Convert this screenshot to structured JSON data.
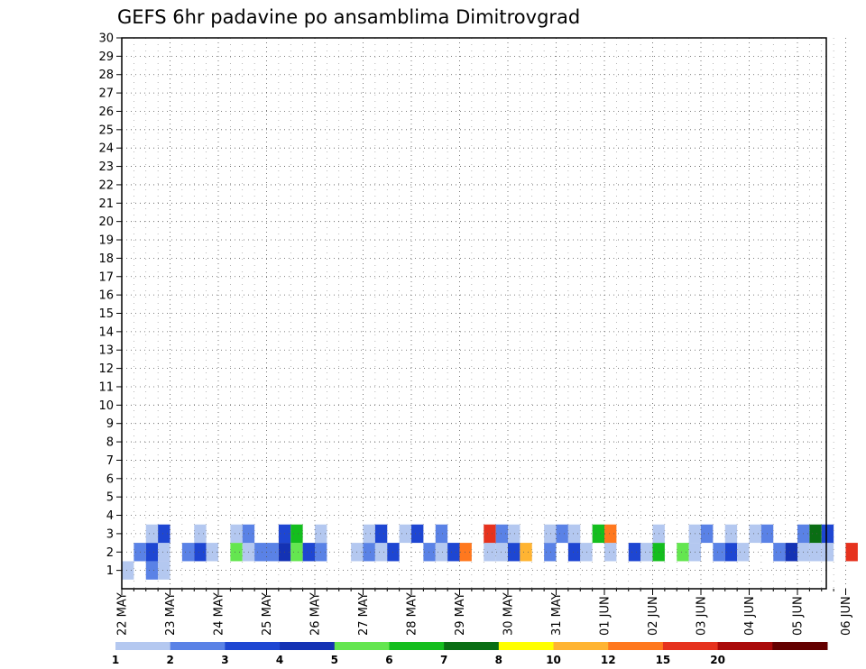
{
  "chart_data": {
    "type": "heatmap",
    "title": "GEFS 6hr padavine po ansamblima Dimitrovgrad",
    "xlabel": "",
    "ylabel": "",
    "x_ticks": [
      "22 MAY",
      "23 MAY",
      "24 MAY",
      "25 MAY",
      "26 MAY",
      "27 MAY",
      "28 MAY",
      "29 MAY",
      "30 MAY",
      "31 MAY",
      "01 JUN",
      "02 JUN",
      "03 JUN",
      "04 JUN",
      "05 JUN",
      "06 JUN"
    ],
    "y_range": [
      0,
      30
    ],
    "y_ticks": [
      1,
      2,
      3,
      4,
      5,
      6,
      7,
      8,
      9,
      10,
      11,
      12,
      13,
      14,
      15,
      16,
      17,
      18,
      19,
      20,
      21,
      22,
      23,
      24,
      25,
      26,
      27,
      28,
      29,
      30
    ],
    "grid": true,
    "legend": {
      "placement": "bottom",
      "labels": [
        "1",
        "2",
        "3",
        "4",
        "5",
        "6",
        "7",
        "8",
        "10",
        "12",
        "15",
        "20"
      ],
      "colors": [
        "#b4c8f0",
        "#5a82e6",
        "#1e46d2",
        "#1432b4",
        "#64e650",
        "#14be1e",
        "#0a6e14",
        "#ffff00",
        "#ffb432",
        "#ff781e",
        "#e6321e",
        "#aa0a0a",
        "#640000"
      ]
    },
    "cells": [
      [
        0.5,
        1,
        "#b4c8f0"
      ],
      [
        2.5,
        1,
        "#5a82e6"
      ],
      [
        3.5,
        1,
        "#b4c8f0"
      ],
      [
        1.5,
        2,
        "#5a82e6"
      ],
      [
        2.5,
        2,
        "#1e46d2"
      ],
      [
        3.5,
        2,
        "#b4c8f0"
      ],
      [
        5.5,
        2,
        "#5a82e6"
      ],
      [
        6.5,
        2,
        "#1e46d2"
      ],
      [
        7.5,
        2,
        "#b4c8f0"
      ],
      [
        9.5,
        2,
        "#64e650"
      ],
      [
        10.5,
        2,
        "#b4c8f0"
      ],
      [
        11.5,
        2,
        "#5a82e6"
      ],
      [
        12.5,
        2,
        "#5a82e6"
      ],
      [
        13.5,
        2,
        "#1432b4"
      ],
      [
        14.5,
        2,
        "#64e650"
      ],
      [
        15.5,
        2,
        "#1e46d2"
      ],
      [
        16.5,
        2,
        "#5a82e6"
      ],
      [
        19.5,
        2,
        "#b4c8f0"
      ],
      [
        20.5,
        2,
        "#5a82e6"
      ],
      [
        21.5,
        2,
        "#b4c8f0"
      ],
      [
        22.5,
        2,
        "#1e46d2"
      ],
      [
        25.5,
        2,
        "#5a82e6"
      ],
      [
        26.5,
        2,
        "#b4c8f0"
      ],
      [
        27.5,
        2,
        "#1e46d2"
      ],
      [
        28.5,
        2,
        "#ff781e"
      ],
      [
        30.5,
        2,
        "#b4c8f0"
      ],
      [
        31.5,
        2,
        "#b4c8f0"
      ],
      [
        32.5,
        2,
        "#1e46d2"
      ],
      [
        33.5,
        2,
        "#ffb432"
      ],
      [
        35.5,
        2,
        "#5a82e6"
      ],
      [
        37.5,
        2,
        "#1e46d2"
      ],
      [
        38.5,
        2,
        "#b4c8f0"
      ],
      [
        40.5,
        2,
        "#b4c8f0"
      ],
      [
        42.5,
        2,
        "#1e46d2"
      ],
      [
        43.5,
        2,
        "#b4c8f0"
      ],
      [
        44.5,
        2,
        "#14be1e"
      ],
      [
        46.5,
        2,
        "#64e650"
      ],
      [
        47.5,
        2,
        "#b4c8f0"
      ],
      [
        49.5,
        2,
        "#5a82e6"
      ],
      [
        50.5,
        2,
        "#1e46d2"
      ],
      [
        51.5,
        2,
        "#b4c8f0"
      ],
      [
        54.5,
        2,
        "#5a82e6"
      ],
      [
        55.5,
        2,
        "#1432b4"
      ],
      [
        56.5,
        2,
        "#b4c8f0"
      ],
      [
        57.5,
        2,
        "#b4c8f0"
      ],
      [
        58.5,
        2,
        "#b4c8f0"
      ],
      [
        60.5,
        2,
        "#e6321e"
      ],
      [
        2.5,
        3,
        "#b4c8f0"
      ],
      [
        3.5,
        3,
        "#1e46d2"
      ],
      [
        6.5,
        3,
        "#b4c8f0"
      ],
      [
        9.5,
        3,
        "#b4c8f0"
      ],
      [
        10.5,
        3,
        "#5a82e6"
      ],
      [
        13.5,
        3,
        "#1e46d2"
      ],
      [
        14.5,
        3,
        "#14be1e"
      ],
      [
        16.5,
        3,
        "#b4c8f0"
      ],
      [
        20.5,
        3,
        "#b4c8f0"
      ],
      [
        21.5,
        3,
        "#1e46d2"
      ],
      [
        23.5,
        3,
        "#b4c8f0"
      ],
      [
        24.5,
        3,
        "#1e46d2"
      ],
      [
        26.5,
        3,
        "#5a82e6"
      ],
      [
        30.5,
        3,
        "#e6321e"
      ],
      [
        31.5,
        3,
        "#5a82e6"
      ],
      [
        32.5,
        3,
        "#b4c8f0"
      ],
      [
        35.5,
        3,
        "#b4c8f0"
      ],
      [
        36.5,
        3,
        "#5a82e6"
      ],
      [
        37.5,
        3,
        "#b4c8f0"
      ],
      [
        39.5,
        3,
        "#14be1e"
      ],
      [
        40.5,
        3,
        "#ff781e"
      ],
      [
        44.5,
        3,
        "#b4c8f0"
      ],
      [
        47.5,
        3,
        "#b4c8f0"
      ],
      [
        48.5,
        3,
        "#5a82e6"
      ],
      [
        50.5,
        3,
        "#b4c8f0"
      ],
      [
        52.5,
        3,
        "#b4c8f0"
      ],
      [
        53.5,
        3,
        "#5a82e6"
      ],
      [
        56.5,
        3,
        "#5a82e6"
      ],
      [
        57.5,
        3,
        "#0a6e14"
      ],
      [
        58.5,
        3,
        "#1e46d2"
      ]
    ]
  }
}
